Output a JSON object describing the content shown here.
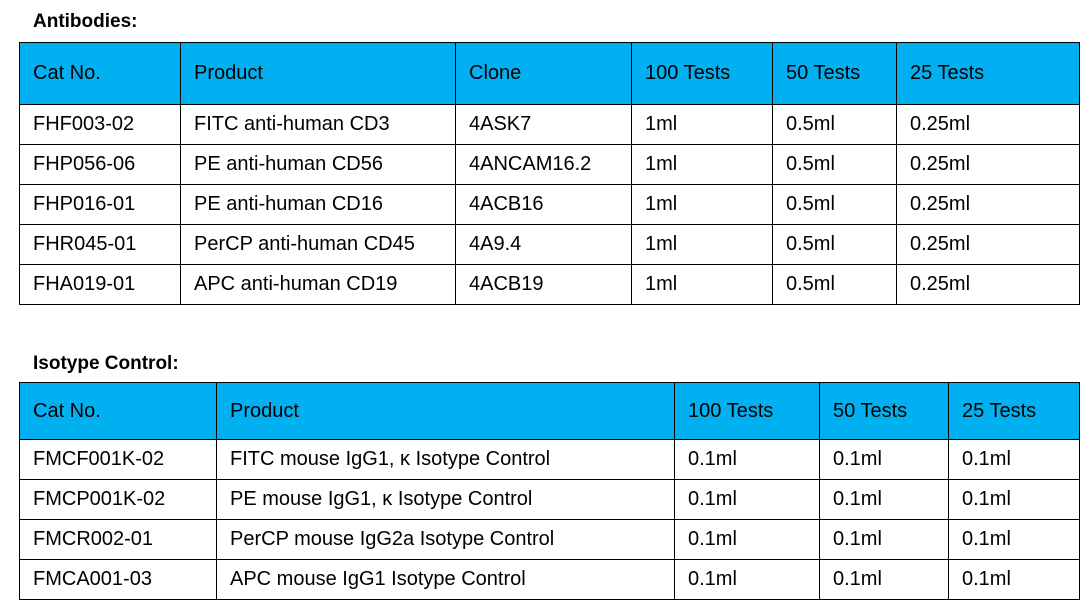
{
  "sections": [
    {
      "title": "Antibodies:",
      "table": {
        "header": [
          "Cat No.",
          "Product",
          "Clone",
          "100 Tests",
          "50 Tests",
          "25 Tests"
        ],
        "rows": [
          [
            "FHF003-02",
            "FITC anti-human CD3",
            "4ASK7",
            "1ml",
            "0.5ml",
            "0.25ml"
          ],
          [
            "FHP056-06",
            "PE anti-human CD56",
            "4ANCAM16.2",
            "1ml",
            "0.5ml",
            "0.25ml"
          ],
          [
            "FHP016-01",
            "PE anti-human CD16",
            "4ACB16",
            "1ml",
            "0.5ml",
            "0.25ml"
          ],
          [
            "FHR045-01",
            "PerCP anti-human CD45",
            "4A9.4",
            "1ml",
            "0.5ml",
            "0.25ml"
          ],
          [
            "FHA019-01",
            "APC anti-human CD19",
            "4ACB19",
            "1ml",
            "0.5ml",
            "0.25ml"
          ]
        ]
      }
    },
    {
      "title": "Isotype Control:",
      "table": {
        "header": [
          "Cat No.",
          "Product",
          "100 Tests",
          "50 Tests",
          "25 Tests"
        ],
        "rows": [
          [
            "FMCF001K-02",
            "FITC mouse IgG1, κ Isotype Control",
            "0.1ml",
            "0.1ml",
            "0.1ml"
          ],
          [
            "FMCP001K-02",
            "PE mouse IgG1, κ Isotype Control",
            "0.1ml",
            "0.1ml",
            "0.1ml"
          ],
          [
            "FMCR002-01",
            "PerCP mouse IgG2a Isotype Control",
            "0.1ml",
            "0.1ml",
            "0.1ml"
          ],
          [
            "FMCA001-03",
            "APC mouse IgG1 Isotype Control",
            "0.1ml",
            "0.1ml",
            "0.1ml"
          ]
        ]
      }
    }
  ]
}
